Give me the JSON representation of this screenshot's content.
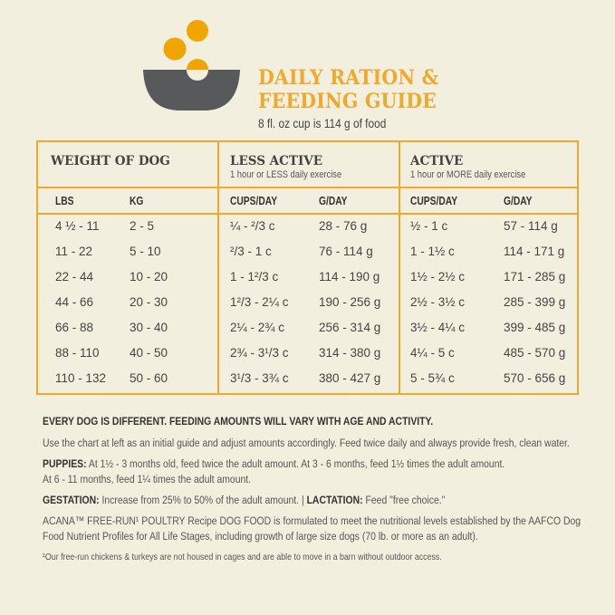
{
  "header": {
    "title_line1": "DAILY RATION &",
    "title_line2": "FEEDING GUIDE",
    "subtitle": "8 fl. oz cup is 114 g of food",
    "icon": "bowl-with-kibble-icon"
  },
  "colors": {
    "accent": "#f0a92a",
    "bowl": "#58595b",
    "background": "#f3efdf"
  },
  "table": {
    "groups": [
      {
        "title": "WEIGHT OF DOG",
        "subtitle": ""
      },
      {
        "title": "LESS ACTIVE",
        "subtitle": "1 hour or LESS daily exercise"
      },
      {
        "title": "ACTIVE",
        "subtitle": "1 hour or MORE daily exercise"
      }
    ],
    "columns": [
      "LBS",
      "KG",
      "CUPS/DAY",
      "G/DAY",
      "CUPS/DAY",
      "G/DAY"
    ],
    "rows": [
      [
        "4 ½ - 11",
        "2 - 5",
        "¼ - ²/3 c",
        "28 - 76 g",
        "½ - 1 c",
        "57 - 114 g"
      ],
      [
        "11 - 22",
        "5 - 10",
        "²/3 - 1 c",
        "76 - 114 g",
        "1 - 1½ c",
        "114 - 171 g"
      ],
      [
        "22 - 44",
        "10 - 20",
        "1 - 1²/3 c",
        "114 - 190 g",
        "1½ - 2½ c",
        "171 - 285 g"
      ],
      [
        "44 - 66",
        "20 - 30",
        "1²/3 - 2¼ c",
        "190 - 256 g",
        "2½ - 3½ c",
        "285 - 399 g"
      ],
      [
        "66 - 88",
        "30 - 40",
        "2¼ - 2¾ c",
        "256 - 314 g",
        "3½ - 4¼ c",
        "399 - 485 g"
      ],
      [
        "88 - 110",
        "40 - 50",
        "2¾ - 3¹/3 c",
        "314 - 380 g",
        "4¼ - 5 c",
        "485 - 570 g"
      ],
      [
        "110 - 132",
        "50 - 60",
        "3¹/3 - 3¾ c",
        "380 - 427 g",
        "5 - 5¾ c",
        "570 - 656 g"
      ]
    ]
  },
  "notes": {
    "headline": "EVERY DOG IS DIFFERENT. FEEDING AMOUNTS WILL VARY WITH AGE AND ACTIVITY.",
    "intro": "Use the chart at left as an initial guide and adjust amounts accordingly. Feed twice daily and always provide fresh, clean water.",
    "puppies_label": "PUPPIES:",
    "puppies_text1": " At 1½ - 3 months old, feed twice the adult amount. At 3 - 6 months, feed 1½ times the adult amount.",
    "puppies_text2": "At 6 - 11 months, feed 1¼ times the adult amount.",
    "gestation_label": "GESTATION:",
    "gestation_text": " Increase from 25% to 50% of the adult amount. | ",
    "lactation_label": "LACTATION:",
    "lactation_text": " Feed \"free choice.\"",
    "aafco_line1": "ACANA™ FREE-RUN¹ POULTRY Recipe DOG FOOD is formulated to meet the nutritional levels established by the AAFCO Dog",
    "aafco_line2": "Food Nutrient Profiles for All Life Stages, including growth of large size dogs (70 lb. or more as an adult).",
    "footnote": "¹Our free-run chickens & turkeys are not housed in cages and are able to move in a barn without outdoor access."
  }
}
